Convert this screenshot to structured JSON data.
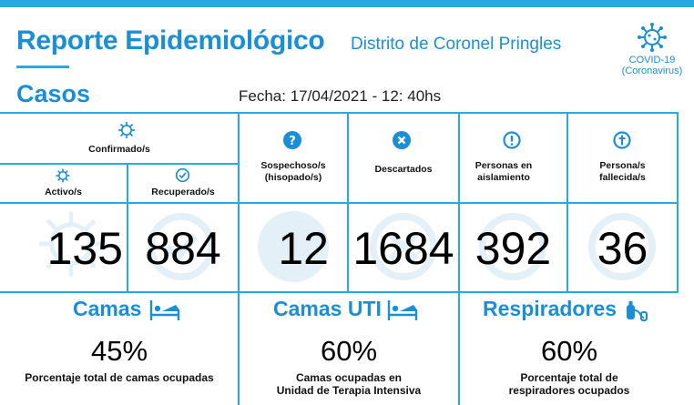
{
  "header": {
    "title": "Reporte Epidemiológico",
    "subtitle": "Distrito de Coronel Pringles",
    "covid_badge": {
      "icon": "virus-icon",
      "line1": "COVID-19",
      "line2": "(Coronavirus)"
    }
  },
  "section": "Casos",
  "fecha": "Fecha: 17/04/2021 - 12: 40hs",
  "colors": {
    "accent": "#1b8fd6",
    "line": "#29a9e1",
    "watermark": "#e3f0f8"
  },
  "stats": {
    "confirmados": {
      "label": "Confirmado/s",
      "icon": "virus-icon"
    },
    "activos": {
      "label": "Activo/s",
      "icon": "virus-icon",
      "value": "135"
    },
    "recuperados": {
      "label": "Recuperado/s",
      "icon": "check-circle-icon",
      "value": "884"
    },
    "sospechosos": {
      "label_1": "Sospechoso/s",
      "label_2": "(hisopado/s)",
      "icon": "question-circle-icon",
      "value": "12"
    },
    "descartados": {
      "label": "Descartados",
      "icon": "x-circle-icon",
      "value": "1684"
    },
    "aislamiento": {
      "label_1": "Personas en",
      "label_2": "aislamiento",
      "icon": "exclamation-circle-icon",
      "value": "392"
    },
    "fallecidos": {
      "label_1": "Persona/s",
      "label_2": "fallecida/s",
      "icon": "cross-circle-icon",
      "value": "36"
    }
  },
  "resources": {
    "camas": {
      "title": "Camas",
      "icon": "hospital-bed-icon",
      "percent": "45%",
      "desc_1": "Porcentaje total de camas ocupadas",
      "desc_2": ""
    },
    "camas_uti": {
      "title": "Camas UTI",
      "icon": "hospital-bed-icon",
      "percent": "60%",
      "desc_1": "Camas ocupadas en",
      "desc_2": "Unidad de Terapia Intensiva"
    },
    "respiradores": {
      "title": "Respiradores",
      "icon": "respirator-icon",
      "percent": "60%",
      "desc_1": "Porcentaje total de",
      "desc_2": "respiradores ocupados"
    }
  }
}
